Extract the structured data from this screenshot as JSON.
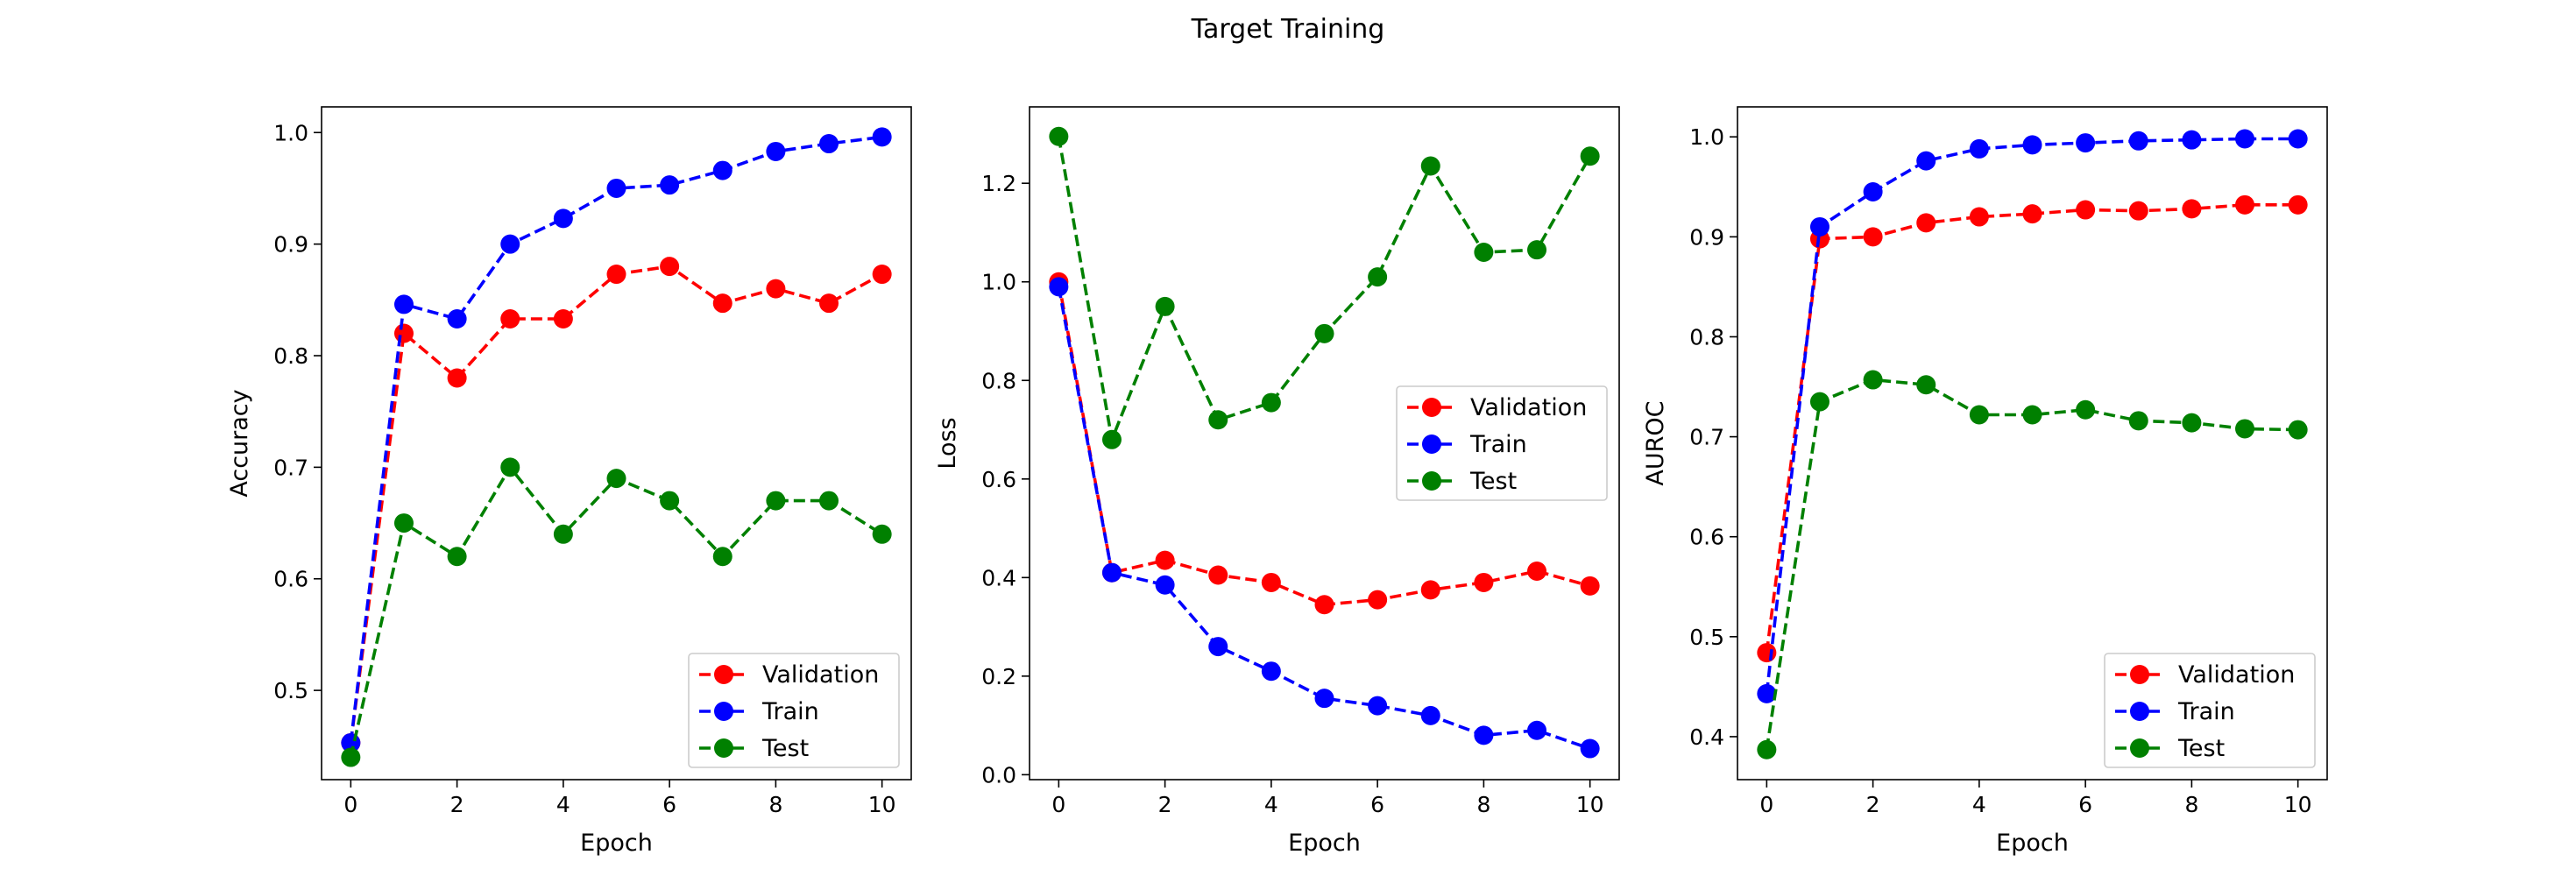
{
  "figure": {
    "title": "Target Training"
  },
  "chart_data": [
    {
      "type": "line",
      "xlabel": "Epoch",
      "ylabel": "Accuracy",
      "xlim": [
        -0.55,
        10.55
      ],
      "ylim": [
        0.42,
        1.023
      ],
      "xticks": [
        0,
        2,
        4,
        6,
        8,
        10
      ],
      "yticks": [
        0.5,
        0.6,
        0.7,
        0.8,
        0.9,
        1.0
      ],
      "ytick_labels": [
        "0.5",
        "0.6",
        "0.7",
        "0.8",
        "0.9",
        "1.0"
      ],
      "legend_position": "lower right",
      "x": [
        0,
        1,
        2,
        3,
        4,
        5,
        6,
        7,
        8,
        9,
        10
      ],
      "series": [
        {
          "name": "Validation",
          "color": "#ff0000",
          "values": [
            0.453,
            0.82,
            0.78,
            0.833,
            0.833,
            0.873,
            0.88,
            0.847,
            0.86,
            0.847,
            0.873
          ]
        },
        {
          "name": "Train",
          "color": "#0000ff",
          "values": [
            0.453,
            0.846,
            0.833,
            0.9,
            0.923,
            0.95,
            0.953,
            0.966,
            0.983,
            0.99,
            0.996
          ]
        },
        {
          "name": "Test",
          "color": "#008000",
          "values": [
            0.44,
            0.65,
            0.62,
            0.7,
            0.64,
            0.69,
            0.67,
            0.62,
            0.67,
            0.67,
            0.64
          ]
        }
      ]
    },
    {
      "type": "line",
      "xlabel": "Epoch",
      "ylabel": "Loss",
      "xlim": [
        -0.55,
        10.55
      ],
      "ylim": [
        -0.01,
        1.355
      ],
      "xticks": [
        0,
        2,
        4,
        6,
        8,
        10
      ],
      "yticks": [
        0.0,
        0.2,
        0.4,
        0.6,
        0.8,
        1.0,
        1.2
      ],
      "ytick_labels": [
        "0.0",
        "0.2",
        "0.4",
        "0.6",
        "0.8",
        "1.0",
        "1.2"
      ],
      "legend_position": "center right",
      "x": [
        0,
        1,
        2,
        3,
        4,
        5,
        6,
        7,
        8,
        9,
        10
      ],
      "series": [
        {
          "name": "Validation",
          "color": "#ff0000",
          "values": [
            1.0,
            0.41,
            0.435,
            0.405,
            0.39,
            0.345,
            0.355,
            0.375,
            0.39,
            0.413,
            0.383
          ]
        },
        {
          "name": "Train",
          "color": "#0000ff",
          "values": [
            0.99,
            0.41,
            0.385,
            0.26,
            0.21,
            0.155,
            0.14,
            0.12,
            0.08,
            0.09,
            0.053
          ]
        },
        {
          "name": "Test",
          "color": "#008000",
          "values": [
            1.295,
            0.68,
            0.95,
            0.72,
            0.755,
            0.895,
            1.01,
            1.235,
            1.06,
            1.065,
            1.255
          ]
        }
      ]
    },
    {
      "type": "line",
      "xlabel": "Epoch",
      "ylabel": "AUROC",
      "xlim": [
        -0.55,
        10.55
      ],
      "ylim": [
        0.357,
        1.03
      ],
      "xticks": [
        0,
        2,
        4,
        6,
        8,
        10
      ],
      "yticks": [
        0.4,
        0.5,
        0.6,
        0.7,
        0.8,
        0.9,
        1.0
      ],
      "ytick_labels": [
        "0.4",
        "0.5",
        "0.6",
        "0.7",
        "0.8",
        "0.9",
        "1.0"
      ],
      "legend_position": "lower right",
      "x": [
        0,
        1,
        2,
        3,
        4,
        5,
        6,
        7,
        8,
        9,
        10
      ],
      "series": [
        {
          "name": "Validation",
          "color": "#ff0000",
          "values": [
            0.484,
            0.898,
            0.9,
            0.914,
            0.92,
            0.923,
            0.927,
            0.926,
            0.928,
            0.932,
            0.932
          ]
        },
        {
          "name": "Train",
          "color": "#0000ff",
          "values": [
            0.443,
            0.91,
            0.945,
            0.976,
            0.988,
            0.992,
            0.994,
            0.996,
            0.997,
            0.998,
            0.998
          ]
        },
        {
          "name": "Test",
          "color": "#008000",
          "values": [
            0.387,
            0.735,
            0.757,
            0.752,
            0.722,
            0.722,
            0.727,
            0.716,
            0.714,
            0.708,
            0.707
          ]
        }
      ]
    }
  ]
}
